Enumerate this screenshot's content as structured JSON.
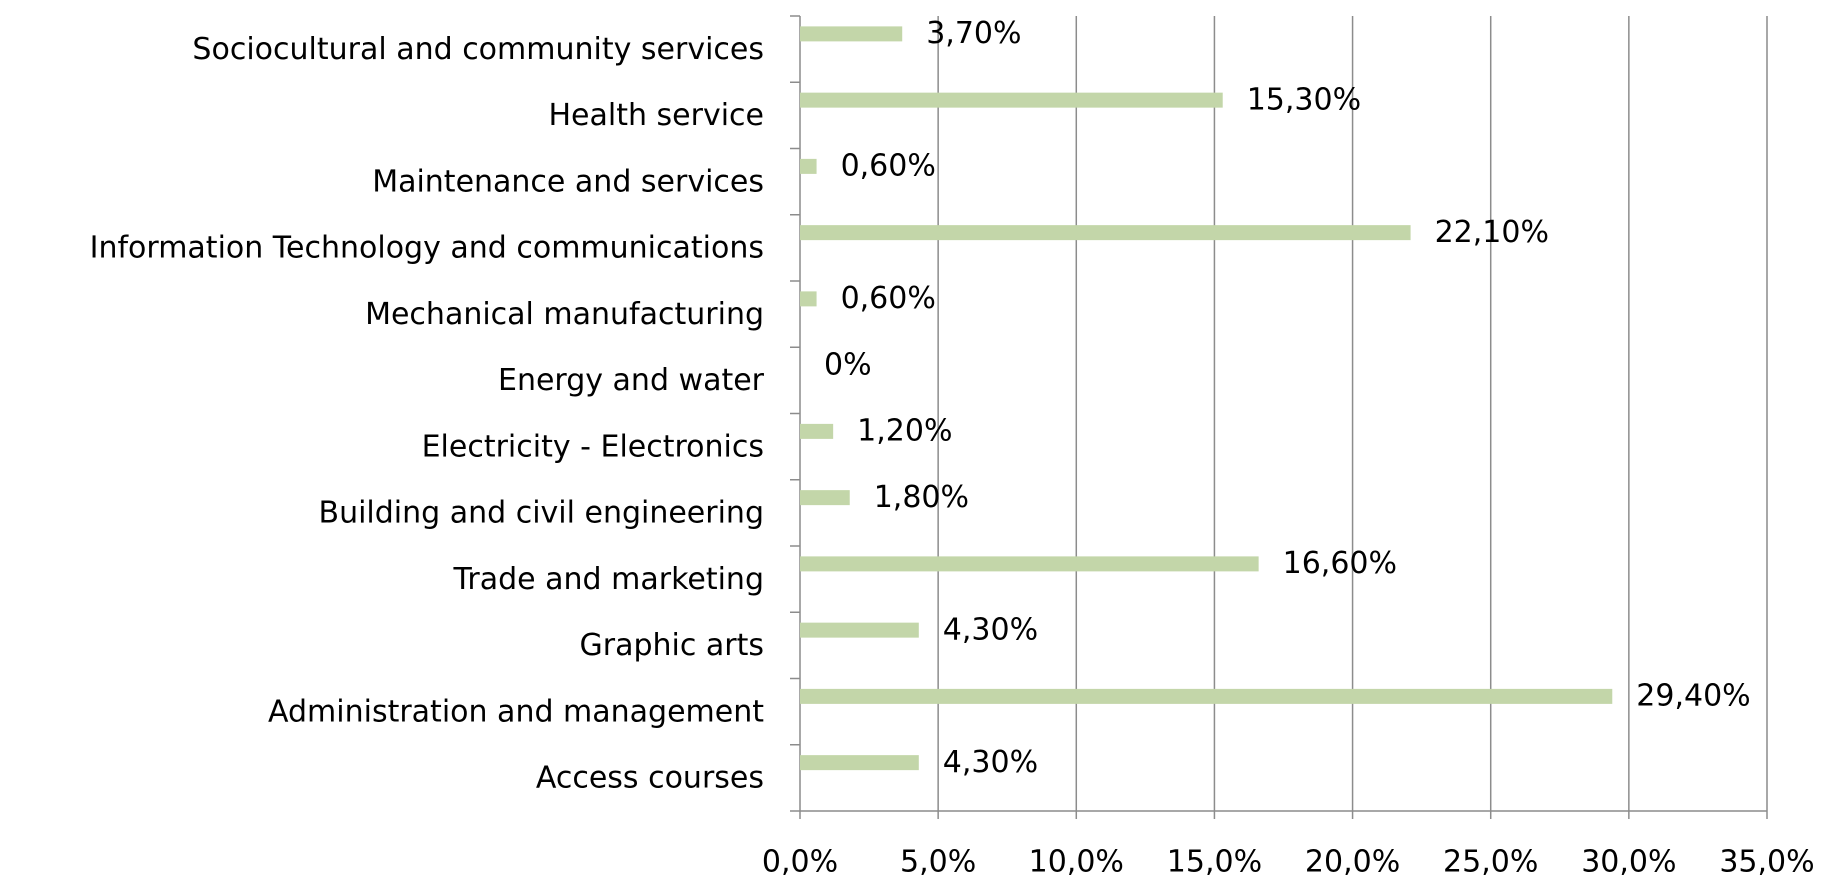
{
  "chart_data": {
    "type": "bar",
    "orientation": "horizontal",
    "categories": [
      "Sociocultural and community services",
      "Health service",
      "Maintenance and services",
      "Information Technology and communications",
      "Mechanical manufacturing",
      "Energy and water",
      "Electricity - Electronics",
      "Building and civil engineering",
      "Trade and marketing",
      "Graphic arts",
      "Administration and management",
      "Access courses"
    ],
    "values": [
      3.7,
      15.3,
      0.6,
      22.1,
      0.6,
      0,
      1.2,
      1.8,
      16.6,
      4.3,
      29.4,
      4.3
    ],
    "value_labels": [
      "3,70%",
      "15,30%",
      "0,60%",
      "22,10%",
      "0,60%",
      "0%",
      "1,20%",
      "1,80%",
      "16,60%",
      "4,30%",
      "29,40%",
      "4,30%"
    ],
    "color": "#c3d6a9",
    "xlim": [
      0,
      35
    ],
    "xticks": [
      {
        "value": 0,
        "label": "0,0%"
      },
      {
        "value": 5,
        "label": "5,0%"
      },
      {
        "value": 10,
        "label": "10,0%"
      },
      {
        "value": 15,
        "label": "15,0%"
      },
      {
        "value": 20,
        "label": "20,0%"
      },
      {
        "value": 25,
        "label": "25,0%"
      },
      {
        "value": 30,
        "label": "30,0%"
      },
      {
        "value": 35,
        "label": "35,0%"
      }
    ],
    "grid": true
  }
}
